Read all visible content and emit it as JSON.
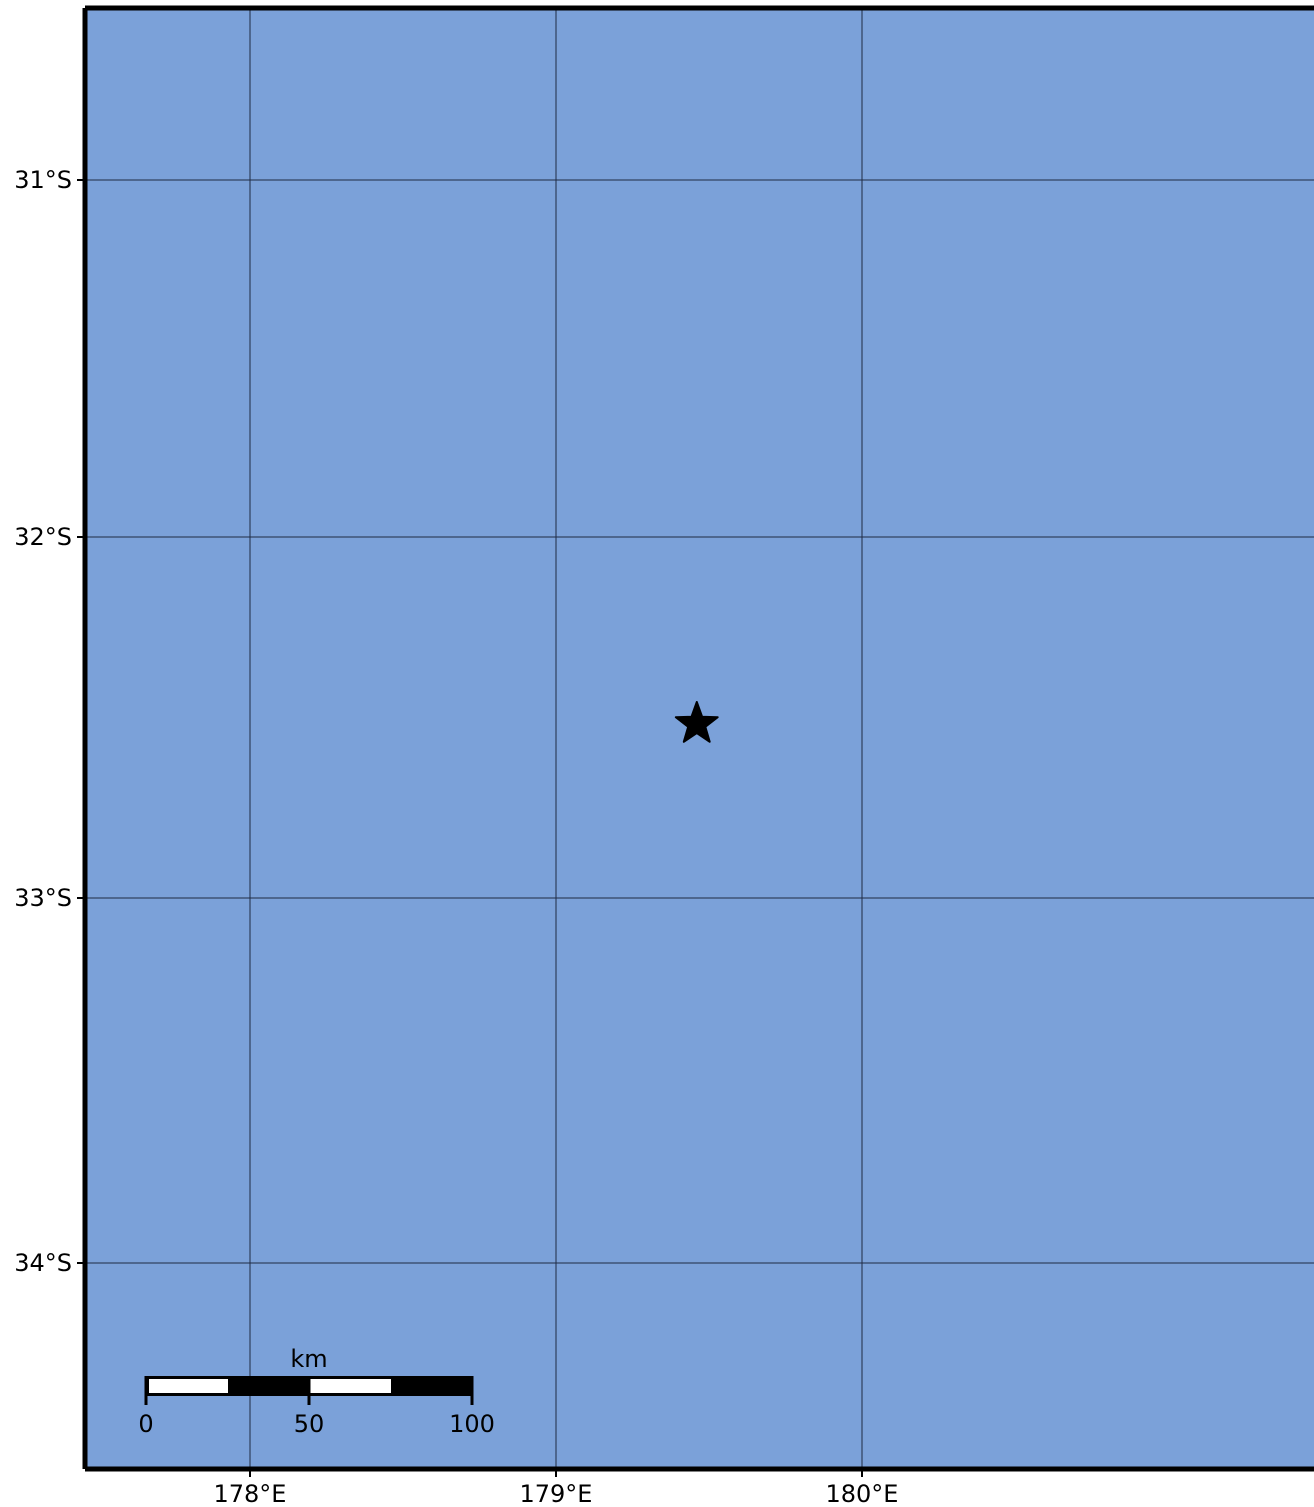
{
  "map": {
    "ocean_color": "#7ba1d9",
    "grid_color": "#1f2a44",
    "frame_color": "#000000",
    "latitudes": [
      {
        "value": -31,
        "label": "31°S"
      },
      {
        "value": -32,
        "label": "32°S"
      },
      {
        "value": -33,
        "label": "33°S"
      },
      {
        "value": -34,
        "label": "34°S"
      }
    ],
    "longitudes": [
      {
        "value": 178,
        "label": "178°E"
      },
      {
        "value": 179,
        "label": "179°E"
      },
      {
        "value": 180,
        "label": "180°E"
      }
    ],
    "marker": {
      "shape": "star-icon",
      "lon": 179.46,
      "lat": -32.52,
      "color": "#000000"
    },
    "scale_bar": {
      "unit": "km",
      "ticks": [
        "0",
        "50",
        "100"
      ]
    }
  }
}
